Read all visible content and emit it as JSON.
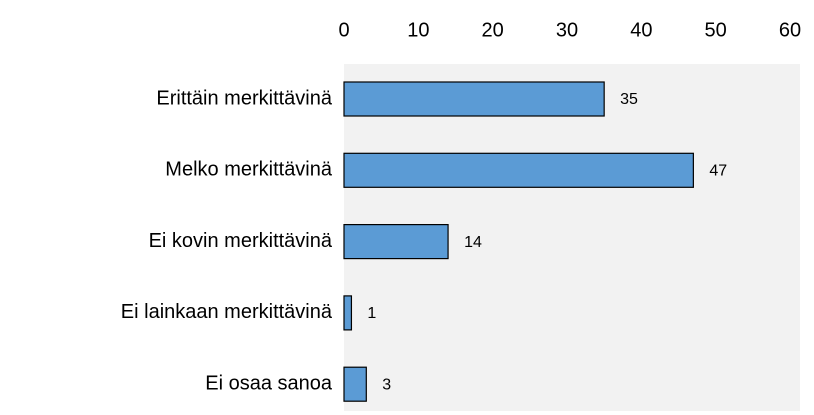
{
  "chart_data": {
    "type": "bar",
    "categories": [
      "Erittäin merkittävinä",
      "Melko merkittävinä",
      "Ei kovin merkittävinä",
      "Ei lainkaan merkittävinä",
      "Ei osaa sanoa"
    ],
    "values": [
      35,
      47,
      14,
      1,
      3
    ],
    "color": "#5b9bd5",
    "xlim": [
      0,
      60
    ],
    "xticks": [
      0,
      10,
      20,
      30,
      40,
      50,
      60
    ]
  }
}
